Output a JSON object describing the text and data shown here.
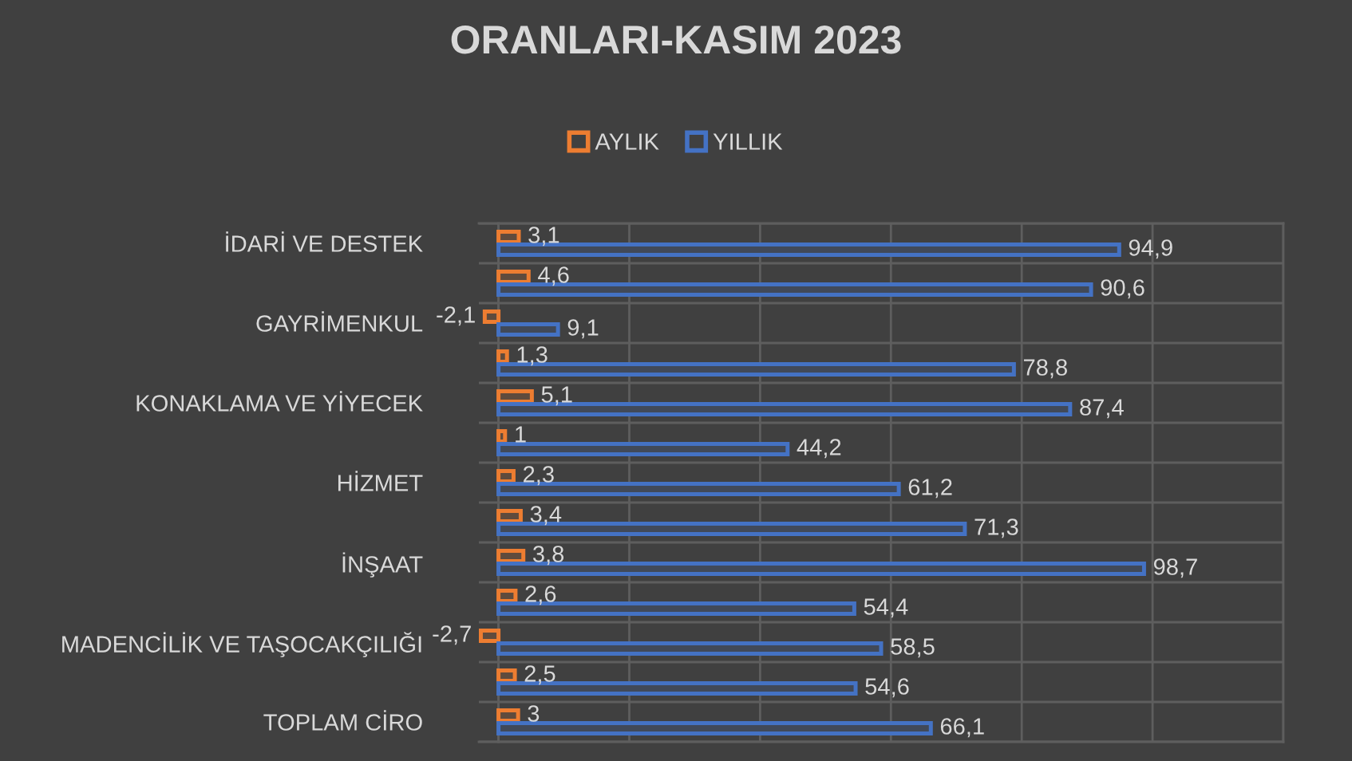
{
  "chart_data": {
    "type": "bar",
    "orientation": "horizontal",
    "title": "ORANLARI-KASIM 2023",
    "categories": [
      "İDARİ VE DESTEK",
      null,
      "GAYRİMENKUL",
      null,
      "KONAKLAMA VE YİYECEK",
      null,
      "HİZMET",
      null,
      "İNŞAAT",
      null,
      "MADENCİLİK VE TAŞOCAKÇILIĞI",
      null,
      "TOPLAM CİRO"
    ],
    "series": [
      {
        "name": "AYLIK",
        "color": "#ed7d31",
        "values": [
          3.1,
          4.6,
          -2.1,
          1.3,
          5.1,
          1,
          2.3,
          3.4,
          3.8,
          2.6,
          -2.7,
          2.5,
          3
        ],
        "value_labels": [
          "3,1",
          "4,6",
          "-2,1",
          "1,3",
          "5,1",
          "1",
          "2,3",
          "3,4",
          "3,8",
          "2,6",
          "-2,7",
          "2,5",
          "3"
        ]
      },
      {
        "name": "YILLIK",
        "color": "#4472c4",
        "values": [
          94.9,
          90.6,
          9.1,
          78.8,
          87.4,
          44.2,
          61.2,
          71.3,
          98.7,
          54.4,
          58.5,
          54.6,
          66.1
        ],
        "value_labels": [
          "94,9",
          "90,6",
          "9,1",
          "78,8",
          "87,4",
          "44,2",
          "61,2",
          "71,3",
          "98,7",
          "54,4",
          "58,5",
          "54,6",
          "66,1"
        ]
      }
    ],
    "xlim": [
      -3,
      120
    ],
    "xticks": [
      {
        "value": 0,
        "label": null
      },
      {
        "value": 20,
        "label": null
      },
      {
        "value": 40,
        "label": null
      },
      {
        "value": 60,
        "label": null
      },
      {
        "value": 80,
        "label": null
      },
      {
        "value": 100,
        "label": null
      },
      {
        "value": 120,
        "label": null
      }
    ],
    "tick_labels": "y",
    "grid": true,
    "legend": "top"
  }
}
